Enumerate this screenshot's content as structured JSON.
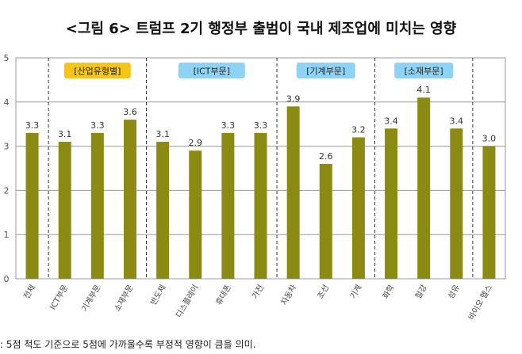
{
  "chart_data": {
    "type": "bar",
    "title": "<그림 6> 트럼프 2기 행정부 출범이 국내 제조업에 미치는 영향",
    "xlabel": "",
    "ylabel": "",
    "ylim": [
      0,
      5
    ],
    "yticks": [
      "0",
      "1",
      "2",
      "3",
      "4",
      "5"
    ],
    "grid": true,
    "categories": [
      "전체",
      "ICT부문",
      "기계부문",
      "소재부문",
      "반도체",
      "디스플레이",
      "휴대폰",
      "가전",
      "자동차",
      "조선",
      "기계",
      "화학",
      "철강",
      "섬유",
      "바이오·헬스"
    ],
    "values": [
      3.3,
      3.1,
      3.3,
      3.6,
      3.1,
      2.9,
      3.3,
      3.3,
      3.9,
      2.6,
      3.2,
      3.4,
      4.1,
      3.4,
      3.0
    ],
    "value_labels": [
      "3.3",
      "3.1",
      "3.3",
      "3.6",
      "3.1",
      "2.9",
      "3.3",
      "3.3",
      "3.9",
      "2.6",
      "3.2",
      "3.4",
      "4.1",
      "3.4",
      "3.0"
    ],
    "groups": [
      {
        "label": "[산업유형별]",
        "start": 1,
        "end": 3,
        "color": "#f5c518"
      },
      {
        "label": "[ICT부문]",
        "start": 4,
        "end": 7,
        "color": "#8fd3f4"
      },
      {
        "label": "[기계부문]",
        "start": 8,
        "end": 10,
        "color": "#8fd3f4"
      },
      {
        "label": "[소재부문]",
        "start": 11,
        "end": 13,
        "color": "#8fd3f4"
      }
    ],
    "bar_color": "#8b8b13"
  },
  "footnote": ": 5점 척도 기준으로 5점에 가까울수록 부정적 영향이 큼을 의미."
}
